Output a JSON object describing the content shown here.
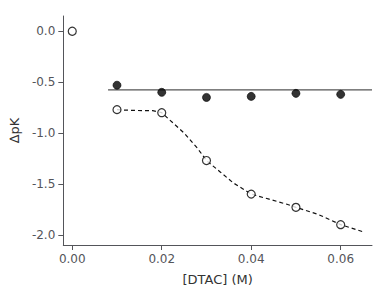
{
  "chart_data": {
    "type": "scatter",
    "title": "",
    "xlabel": "[DTAC] (M)",
    "ylabel": "∆pK",
    "xlim": [
      -0.002,
      0.067
    ],
    "ylim": [
      -2.1,
      0.15
    ],
    "xticks": [
      {
        "value": 0.0,
        "label": "0.00"
      },
      0.02,
      0.04,
      0.06
    ],
    "yticks": [
      {
        "value": 0.0,
        "label": "0.0"
      },
      -0.5,
      {
        "value": -1.0,
        "label": "-1.0"
      },
      -1.5,
      {
        "value": -2.0,
        "label": "-2.0"
      }
    ],
    "grid": false,
    "series": [
      {
        "type": "line",
        "color": "#555555",
        "line_style": "solid",
        "marker": "none",
        "x": [
          0.008,
          0.067
        ],
        "values": [
          -0.575,
          -0.575
        ]
      },
      {
        "type": "scatter",
        "color": "#000000",
        "marker": "circle",
        "x": [
          0.01,
          0.02,
          0.03,
          0.04,
          0.05,
          0.06
        ],
        "values": [
          -0.53,
          -0.6,
          -0.65,
          -0.64,
          -0.61,
          -0.62
        ]
      },
      {
        "type": "scatter",
        "color": "#000000",
        "marker": "open_circle",
        "x": [
          0.0
        ],
        "values": [
          0.0
        ]
      },
      {
        "type": "line",
        "color": "#111111",
        "line_style": "dashed",
        "marker": "none",
        "x": [
          0.01,
          0.012,
          0.014,
          0.016,
          0.018,
          0.02,
          0.022,
          0.025,
          0.028,
          0.03,
          0.033,
          0.036,
          0.04,
          0.044,
          0.048,
          0.05,
          0.055,
          0.06,
          0.065
        ],
        "values": [
          -0.77,
          -0.775,
          -0.778,
          -0.78,
          -0.78,
          -0.8,
          -0.88,
          -1.0,
          -1.15,
          -1.27,
          -1.38,
          -1.49,
          -1.6,
          -1.65,
          -1.7,
          -1.73,
          -1.8,
          -1.9,
          -1.97
        ]
      },
      {
        "type": "scatter",
        "color": "#000000",
        "marker": "open_circle",
        "x": [
          0.01,
          0.02,
          0.03,
          0.04,
          0.05,
          0.06
        ],
        "values": [
          -0.77,
          -0.8,
          -1.27,
          -1.6,
          -1.73,
          -1.9
        ]
      }
    ]
  }
}
